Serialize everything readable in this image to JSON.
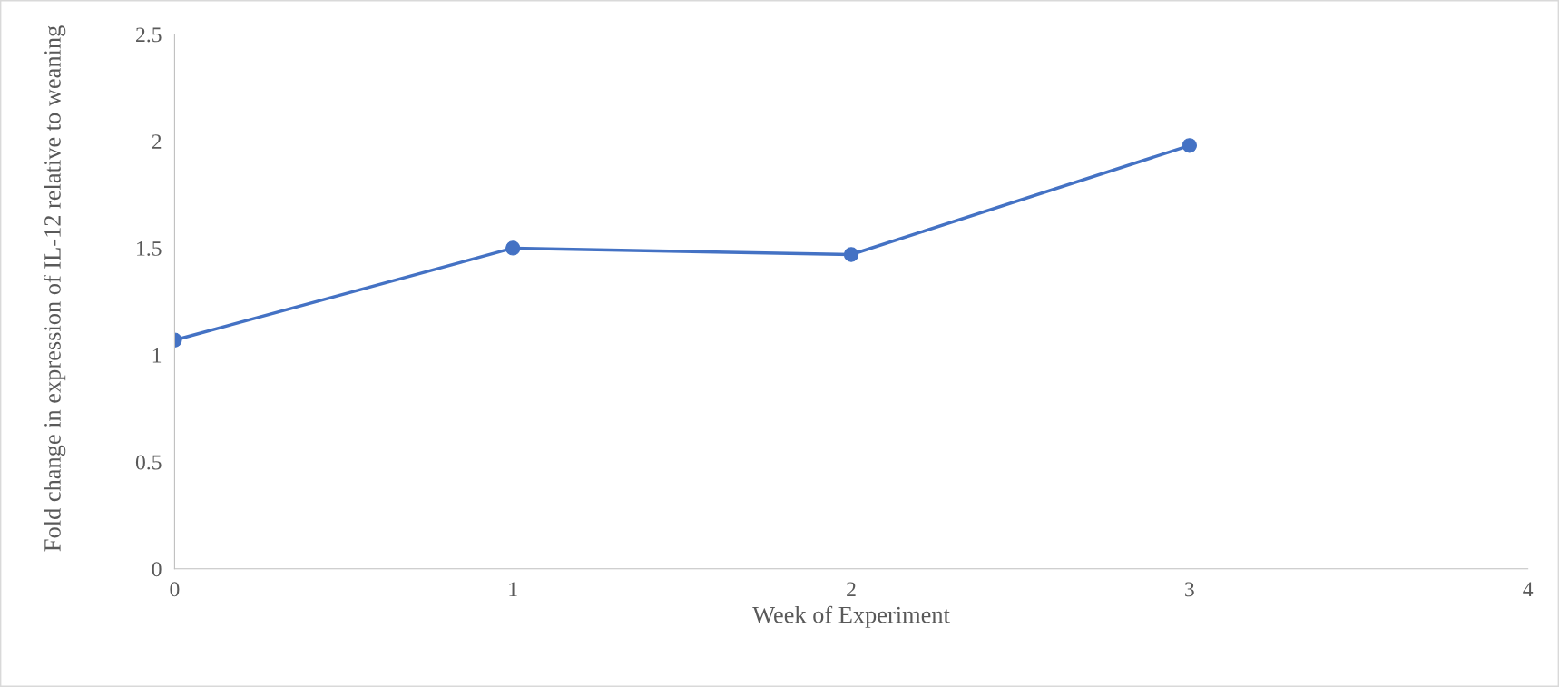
{
  "chart_data": {
    "type": "line",
    "xlabel": "Week of Experiment",
    "ylabel": "Fold change in expression of IL-12 relative to weaning",
    "x": [
      0,
      1,
      2,
      3
    ],
    "series": [
      {
        "color": "#4472c4",
        "values": [
          1.07,
          1.5,
          1.47,
          1.98
        ]
      }
    ],
    "xlim": [
      0,
      4
    ],
    "xticks": [
      0,
      1,
      2,
      3,
      4
    ],
    "ylim": [
      0,
      2.5
    ],
    "yticks": [
      0,
      0.5,
      1,
      1.5,
      2,
      2.5
    ],
    "marker": "circle",
    "line_style": "solid",
    "grid": false
  }
}
